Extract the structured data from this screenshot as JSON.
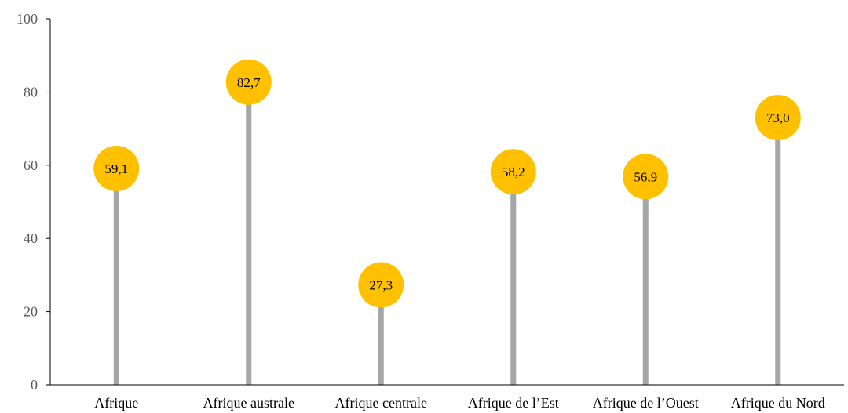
{
  "chart_data": {
    "type": "lollipop",
    "title": "",
    "xlabel": "",
    "ylabel": "",
    "ylim": [
      0,
      100
    ],
    "yticks": [
      0,
      20,
      40,
      60,
      80,
      100
    ],
    "categories": [
      "Afrique",
      "Afrique australe",
      "Afrique centrale",
      "Afrique de l’Est",
      "Afrique de l’Ouest",
      "Afrique du Nord"
    ],
    "values": [
      59.1,
      82.7,
      27.3,
      58.2,
      56.9,
      73.0
    ],
    "data_labels": [
      "59,1",
      "82,7",
      "27,3",
      "58,2",
      "56,9",
      "73,0"
    ],
    "grid": false,
    "legend": "none",
    "colors": {
      "stem": "#A6A6A6",
      "marker": "#FFC000",
      "axis": "#000000"
    }
  }
}
